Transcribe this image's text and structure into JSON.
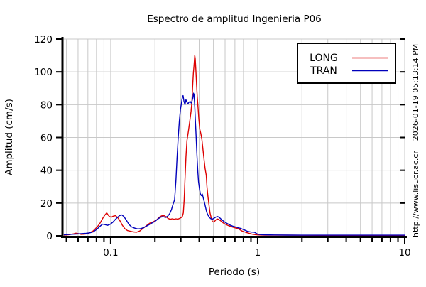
{
  "chart_data": {
    "type": "line",
    "title": "Espectro de amplitud Ingenieria P06",
    "xlabel": "Periodo (s)",
    "ylabel": "Amplitud (cm/s)",
    "x_scale": "log",
    "x_range": [
      0.047,
      10
    ],
    "y_range": [
      0,
      120
    ],
    "y_ticks": [
      0,
      20,
      40,
      60,
      80,
      100,
      120
    ],
    "x_ticks": [
      {
        "v": 0.1,
        "label": "0.1"
      },
      {
        "v": 1,
        "label": "1"
      },
      {
        "v": 10,
        "label": "10"
      }
    ],
    "grid": true,
    "legend": {
      "position": "top-right",
      "entries": [
        "LONG",
        "TRAN"
      ]
    },
    "annotations": {
      "timestamp": "2026-01-19 05:13:14 PM",
      "url": "http://www.lisucr.ac.cr"
    },
    "colors": {
      "long": "#dd0000",
      "tran": "#0000bb",
      "grid": "#c8c8c8",
      "axis": "#000000",
      "legend_border": "#000000",
      "background": "#ffffff"
    },
    "series": [
      {
        "name": "LONG",
        "color": "#dd0000",
        "points": [
          [
            0.048,
            0.4
          ],
          [
            0.052,
            0.7
          ],
          [
            0.056,
            1.2
          ],
          [
            0.058,
            1.6
          ],
          [
            0.06,
            1.4
          ],
          [
            0.063,
            0.9
          ],
          [
            0.066,
            1.0
          ],
          [
            0.07,
            1.3
          ],
          [
            0.073,
            2.2
          ],
          [
            0.076,
            3.0
          ],
          [
            0.079,
            4.5
          ],
          [
            0.082,
            6.0
          ],
          [
            0.085,
            8.0
          ],
          [
            0.088,
            10.5
          ],
          [
            0.091,
            12.5
          ],
          [
            0.094,
            14.0
          ],
          [
            0.096,
            12.8
          ],
          [
            0.098,
            11.8
          ],
          [
            0.101,
            11.4
          ],
          [
            0.104,
            12.0
          ],
          [
            0.108,
            12.3
          ],
          [
            0.112,
            11.0
          ],
          [
            0.116,
            9.0
          ],
          [
            0.12,
            6.5
          ],
          [
            0.125,
            4.3
          ],
          [
            0.13,
            3.2
          ],
          [
            0.136,
            2.8
          ],
          [
            0.143,
            2.4
          ],
          [
            0.15,
            2.2
          ],
          [
            0.158,
            3.0
          ],
          [
            0.166,
            4.6
          ],
          [
            0.175,
            6.2
          ],
          [
            0.185,
            7.8
          ],
          [
            0.195,
            8.6
          ],
          [
            0.205,
            9.6
          ],
          [
            0.215,
            11.5
          ],
          [
            0.222,
            12.2
          ],
          [
            0.23,
            12.4
          ],
          [
            0.238,
            11.6
          ],
          [
            0.246,
            10.6
          ],
          [
            0.254,
            10.1
          ],
          [
            0.262,
            10.4
          ],
          [
            0.27,
            10.1
          ],
          [
            0.278,
            10.4
          ],
          [
            0.286,
            10.2
          ],
          [
            0.294,
            10.6
          ],
          [
            0.302,
            11.2
          ],
          [
            0.308,
            12.0
          ],
          [
            0.312,
            14.0
          ],
          [
            0.316,
            22.0
          ],
          [
            0.32,
            34.0
          ],
          [
            0.325,
            48.0
          ],
          [
            0.33,
            58.0
          ],
          [
            0.338,
            64.0
          ],
          [
            0.345,
            70.0
          ],
          [
            0.352,
            76.0
          ],
          [
            0.357,
            82.0
          ],
          [
            0.361,
            91.0
          ],
          [
            0.365,
            99.0
          ],
          [
            0.369,
            104.0
          ],
          [
            0.373,
            110.0
          ],
          [
            0.376,
            108.0
          ],
          [
            0.38,
            101.0
          ],
          [
            0.384,
            92.0
          ],
          [
            0.388,
            85.0
          ],
          [
            0.393,
            78.0
          ],
          [
            0.398,
            71.0
          ],
          [
            0.404,
            65.0
          ],
          [
            0.41,
            62.5
          ],
          [
            0.417,
            59.0
          ],
          [
            0.424,
            53.0
          ],
          [
            0.431,
            47.0
          ],
          [
            0.439,
            41.0
          ],
          [
            0.447,
            37.0
          ],
          [
            0.452,
            30.0
          ],
          [
            0.459,
            24.0
          ],
          [
            0.466,
            19.0
          ],
          [
            0.474,
            14.0
          ],
          [
            0.483,
            11.0
          ],
          [
            0.492,
            8.6
          ],
          [
            0.504,
            8.4
          ],
          [
            0.518,
            9.6
          ],
          [
            0.53,
            10.3
          ],
          [
            0.544,
            10.0
          ],
          [
            0.56,
            9.2
          ],
          [
            0.58,
            8.0
          ],
          [
            0.6,
            7.2
          ],
          [
            0.63,
            6.3
          ],
          [
            0.66,
            5.6
          ],
          [
            0.7,
            4.9
          ],
          [
            0.74,
            4.3
          ],
          [
            0.78,
            3.0
          ],
          [
            0.825,
            2.2
          ],
          [
            0.87,
            1.6
          ],
          [
            0.92,
            1.0
          ],
          [
            0.97,
            0.7
          ],
          [
            1.03,
            0.5
          ],
          [
            1.12,
            0.45
          ],
          [
            1.3,
            0.4
          ],
          [
            1.6,
            0.4
          ],
          [
            2.0,
            0.35
          ],
          [
            2.6,
            0.3
          ],
          [
            3.4,
            0.25
          ],
          [
            4.5,
            0.2
          ],
          [
            6.0,
            0.2
          ],
          [
            8.0,
            0.2
          ],
          [
            10.0,
            0.2
          ]
        ]
      },
      {
        "name": "TRAN",
        "color": "#0000bb",
        "points": [
          [
            0.048,
            0.6
          ],
          [
            0.053,
            0.9
          ],
          [
            0.058,
            1.1
          ],
          [
            0.063,
            1.3
          ],
          [
            0.068,
            1.5
          ],
          [
            0.072,
            1.8
          ],
          [
            0.076,
            2.4
          ],
          [
            0.08,
            3.8
          ],
          [
            0.084,
            5.6
          ],
          [
            0.088,
            7.1
          ],
          [
            0.091,
            6.9
          ],
          [
            0.095,
            6.4
          ],
          [
            0.099,
            7.0
          ],
          [
            0.103,
            8.2
          ],
          [
            0.107,
            9.8
          ],
          [
            0.111,
            11.2
          ],
          [
            0.115,
            12.4
          ],
          [
            0.119,
            12.8
          ],
          [
            0.123,
            11.8
          ],
          [
            0.128,
            9.5
          ],
          [
            0.133,
            7.0
          ],
          [
            0.139,
            5.4
          ],
          [
            0.146,
            4.7
          ],
          [
            0.153,
            4.2
          ],
          [
            0.161,
            4.4
          ],
          [
            0.17,
            5.3
          ],
          [
            0.18,
            6.5
          ],
          [
            0.19,
            7.7
          ],
          [
            0.2,
            8.8
          ],
          [
            0.21,
            10.4
          ],
          [
            0.22,
            11.5
          ],
          [
            0.228,
            11.7
          ],
          [
            0.236,
            11.2
          ],
          [
            0.244,
            12.0
          ],
          [
            0.252,
            13.5
          ],
          [
            0.259,
            16.0
          ],
          [
            0.265,
            19.0
          ],
          [
            0.272,
            22.0
          ],
          [
            0.278,
            34.0
          ],
          [
            0.283,
            48.0
          ],
          [
            0.288,
            60.0
          ],
          [
            0.293,
            70.0
          ],
          [
            0.298,
            77.0
          ],
          [
            0.303,
            81.0
          ],
          [
            0.307,
            84.5
          ],
          [
            0.311,
            85.5
          ],
          [
            0.315,
            82.0
          ],
          [
            0.32,
            80.0
          ],
          [
            0.325,
            83.0
          ],
          [
            0.33,
            81.5
          ],
          [
            0.335,
            80.5
          ],
          [
            0.341,
            81.5
          ],
          [
            0.347,
            82.0
          ],
          [
            0.353,
            81.0
          ],
          [
            0.358,
            82.5
          ],
          [
            0.362,
            84.0
          ],
          [
            0.366,
            87.0
          ],
          [
            0.369,
            86.0
          ],
          [
            0.373,
            79.0
          ],
          [
            0.377,
            70.0
          ],
          [
            0.381,
            61.0
          ],
          [
            0.386,
            50.0
          ],
          [
            0.391,
            40.0
          ],
          [
            0.396,
            33.0
          ],
          [
            0.402,
            28.5
          ],
          [
            0.408,
            25.5
          ],
          [
            0.414,
            24.5
          ],
          [
            0.42,
            25.5
          ],
          [
            0.427,
            23.0
          ],
          [
            0.434,
            20.5
          ],
          [
            0.442,
            17.5
          ],
          [
            0.45,
            14.5
          ],
          [
            0.46,
            12.5
          ],
          [
            0.47,
            11.2
          ],
          [
            0.481,
            10.4
          ],
          [
            0.492,
            10.2
          ],
          [
            0.505,
            10.8
          ],
          [
            0.52,
            11.5
          ],
          [
            0.535,
            11.8
          ],
          [
            0.552,
            11.0
          ],
          [
            0.57,
            9.8
          ],
          [
            0.592,
            8.6
          ],
          [
            0.618,
            7.6
          ],
          [
            0.648,
            6.6
          ],
          [
            0.682,
            5.8
          ],
          [
            0.72,
            5.2
          ],
          [
            0.762,
            4.6
          ],
          [
            0.8,
            3.8
          ],
          [
            0.85,
            2.8
          ],
          [
            0.9,
            2.3
          ],
          [
            0.95,
            2.2
          ],
          [
            1.0,
            1.0
          ],
          [
            1.06,
            0.7
          ],
          [
            1.15,
            0.55
          ],
          [
            1.3,
            0.5
          ],
          [
            1.6,
            0.45
          ],
          [
            2.0,
            0.4
          ],
          [
            3.0,
            0.4
          ],
          [
            4.0,
            0.4
          ],
          [
            6.0,
            0.4
          ],
          [
            8.0,
            0.4
          ],
          [
            10.0,
            0.4
          ]
        ]
      }
    ]
  }
}
